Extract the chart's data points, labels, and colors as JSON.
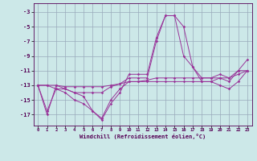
{
  "x": [
    0,
    1,
    2,
    3,
    4,
    5,
    6,
    7,
    8,
    9,
    10,
    11,
    12,
    13,
    14,
    15,
    16,
    17,
    18,
    19,
    20,
    21,
    22,
    23
  ],
  "line1": [
    -13,
    -17,
    -13,
    -13.5,
    -14,
    -14.5,
    -16.5,
    -17.5,
    -15,
    -13.5,
    -12.5,
    -12.5,
    -12.5,
    -12.5,
    -12.5,
    -12.5,
    -12.5,
    -12.5,
    -12.5,
    -12.5,
    -13,
    -13.5,
    -12.5,
    -11
  ],
  "line2": [
    -13,
    -16.5,
    -13.5,
    -14,
    -15,
    -15.5,
    -16.5,
    -17.7,
    -15.5,
    -14,
    -11.5,
    -11.5,
    -11.5,
    -6.5,
    -3.5,
    -3.5,
    -9,
    -10.5,
    -12.5,
    -12.5,
    -12,
    -12.5,
    -11,
    -11
  ],
  "line3": [
    -13,
    -13,
    -13,
    -13.2,
    -13.2,
    -13.2,
    -13.2,
    -13.2,
    -13,
    -12.8,
    -12.5,
    -12.5,
    -12.3,
    -12,
    -12,
    -12,
    -12,
    -12,
    -12,
    -12,
    -12,
    -12,
    -11.5,
    -11
  ],
  "line4": [
    -13,
    -13,
    -13.5,
    -13.5,
    -14,
    -14,
    -14,
    -14,
    -13.2,
    -12.8,
    -12,
    -12,
    -12,
    -7,
    -3.5,
    -3.5,
    -5,
    -10.5,
    -12,
    -12,
    -11.5,
    -12,
    -11,
    -9.5
  ],
  "color": "#993399",
  "bgcolor": "#cce8e8",
  "grid_color": "#99aabb",
  "xlabel": "Windchill (Refroidissement éolien,°C)",
  "xlim": [
    -0.5,
    23.5
  ],
  "ylim": [
    -18.5,
    -1.8
  ],
  "yticks": [
    -17,
    -15,
    -13,
    -11,
    -9,
    -7,
    -5,
    -3
  ],
  "xticks": [
    0,
    1,
    2,
    3,
    4,
    5,
    6,
    7,
    8,
    9,
    10,
    11,
    12,
    13,
    14,
    15,
    16,
    17,
    18,
    19,
    20,
    21,
    22,
    23
  ]
}
